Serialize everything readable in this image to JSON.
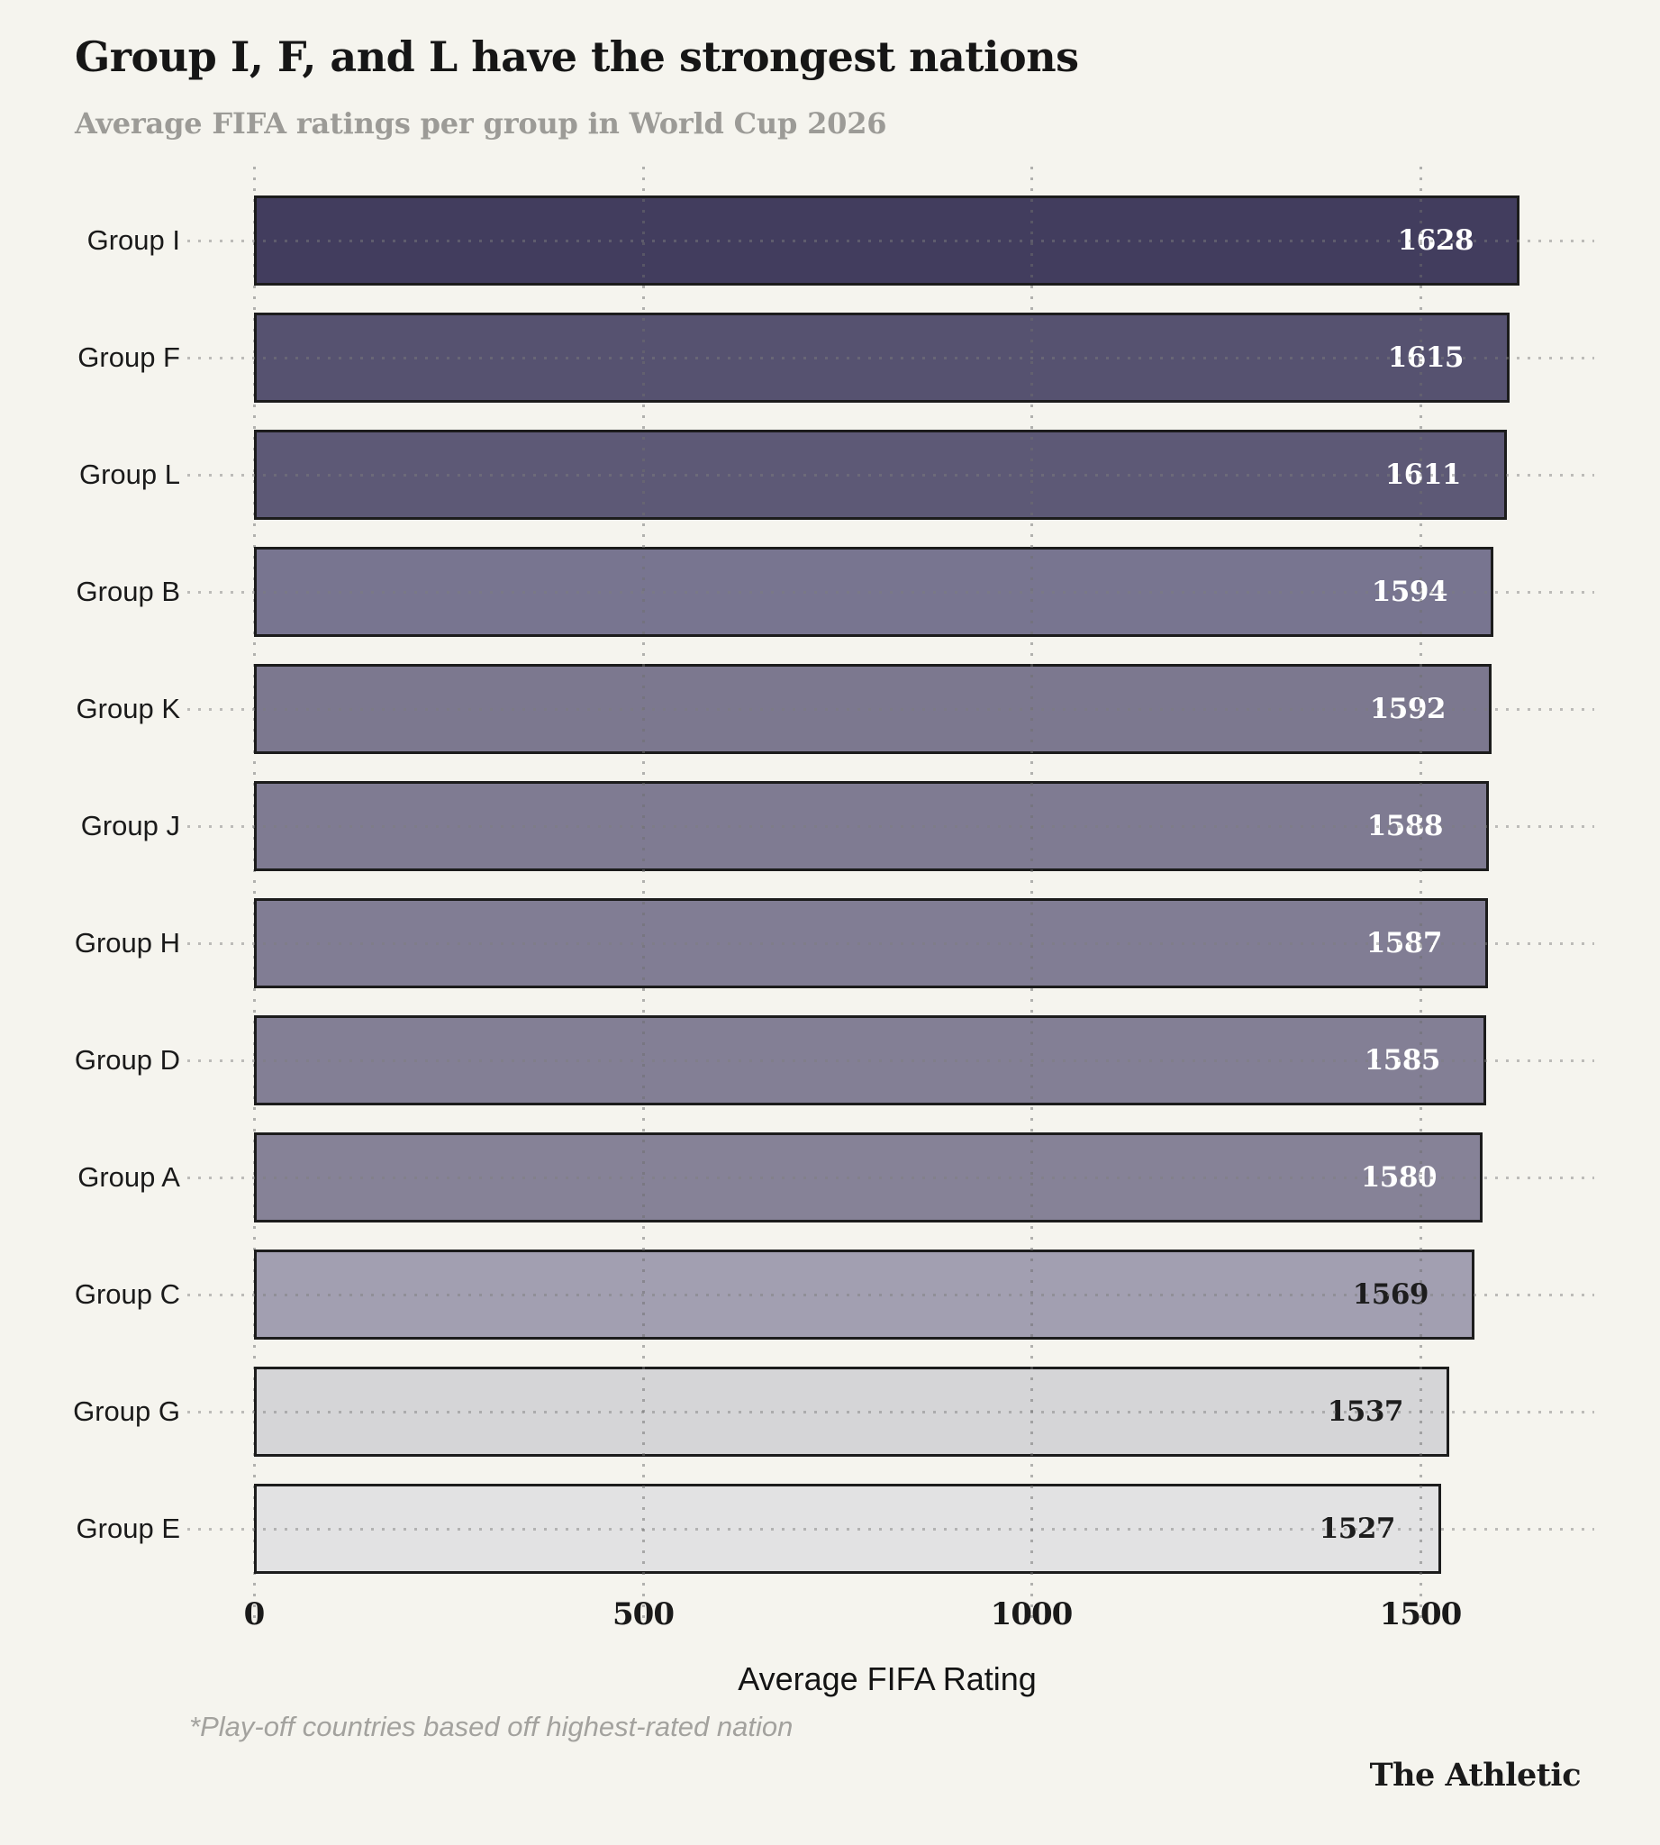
{
  "header": {
    "title": "Group I, F, and L have the strongest nations",
    "subtitle": "Average FIFA ratings per group in World Cup 2026"
  },
  "chart_data": {
    "type": "bar",
    "orientation": "horizontal",
    "title": "Group I, F, and L have the strongest nations",
    "subtitle": "Average FIFA ratings per group in World Cup 2026",
    "categories": [
      "Group I",
      "Group F",
      "Group L",
      "Group B",
      "Group K",
      "Group J",
      "Group H",
      "Group D",
      "Group A",
      "Group C",
      "Group G",
      "Group E"
    ],
    "values": [
      1628,
      1615,
      1611,
      1594,
      1592,
      1588,
      1587,
      1585,
      1580,
      1569,
      1537,
      1527
    ],
    "bar_colors": [
      "#423d5e",
      "#565270",
      "#5d5976",
      "#787590",
      "#7c788f",
      "#7f7b92",
      "#817d94",
      "#837f95",
      "#868297",
      "#a29fb1",
      "#d5d5d7",
      "#e2e2e3"
    ],
    "value_label_colors": [
      "#ffffff",
      "#ffffff",
      "#ffffff",
      "#ffffff",
      "#ffffff",
      "#ffffff",
      "#ffffff",
      "#ffffff",
      "#ffffff",
      "#1d1d1d",
      "#1d1d1d",
      "#1d1d1d"
    ],
    "xlabel": "Average FIFA Rating",
    "ylabel": "",
    "x_ticks": [
      0,
      500,
      1000,
      1500
    ],
    "xlim": [
      0,
      1628
    ],
    "grid": "vertical-dotted",
    "legend": "none"
  },
  "axis": {
    "x_title": "Average FIFA Rating"
  },
  "footnote": "*Play-off countries based off highest-rated nation",
  "branding": "The Athletic",
  "colors": {
    "background": "#f5f4ee",
    "bar_border": "#1c1c1c",
    "title_text": "#161616",
    "subtitle_text": "#9c9b97",
    "footnote_text": "#a3a29e",
    "bar_value_light": "#ffffff",
    "bar_value_dark": "#1d1d1d"
  }
}
